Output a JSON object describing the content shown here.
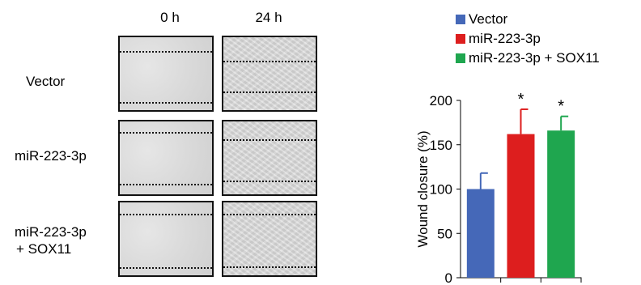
{
  "figure": {
    "column_labels": [
      "0 h",
      "24 h"
    ],
    "row_labels": [
      {
        "line1": "Vector",
        "line2": ""
      },
      {
        "line1": "miR-223-3p",
        "line2": ""
      },
      {
        "line1": "miR-223-3p",
        "line2": "+ SOX11"
      }
    ]
  },
  "chart_data": {
    "type": "bar",
    "categories": [
      "Vector",
      "miR-223-3p",
      "miR-223-3p + SOX11"
    ],
    "series": [
      {
        "values": [
          100,
          162,
          166
        ],
        "errors": [
          18,
          28,
          16
        ],
        "annotations": [
          "",
          "*",
          "*"
        ]
      }
    ],
    "colors": [
      "#4568b8",
      "#dd1e1e",
      "#1fa64f"
    ],
    "legend": [
      "Vector",
      "miR-223-3p",
      "miR-223-3p + SOX11"
    ],
    "legend_position": "top-right",
    "ylabel": "Wound closure (%)",
    "xlabel": "",
    "ylim": [
      0,
      200
    ],
    "yticks": [
      "0",
      "50",
      "100",
      "150",
      "200"
    ],
    "grid": false
  }
}
